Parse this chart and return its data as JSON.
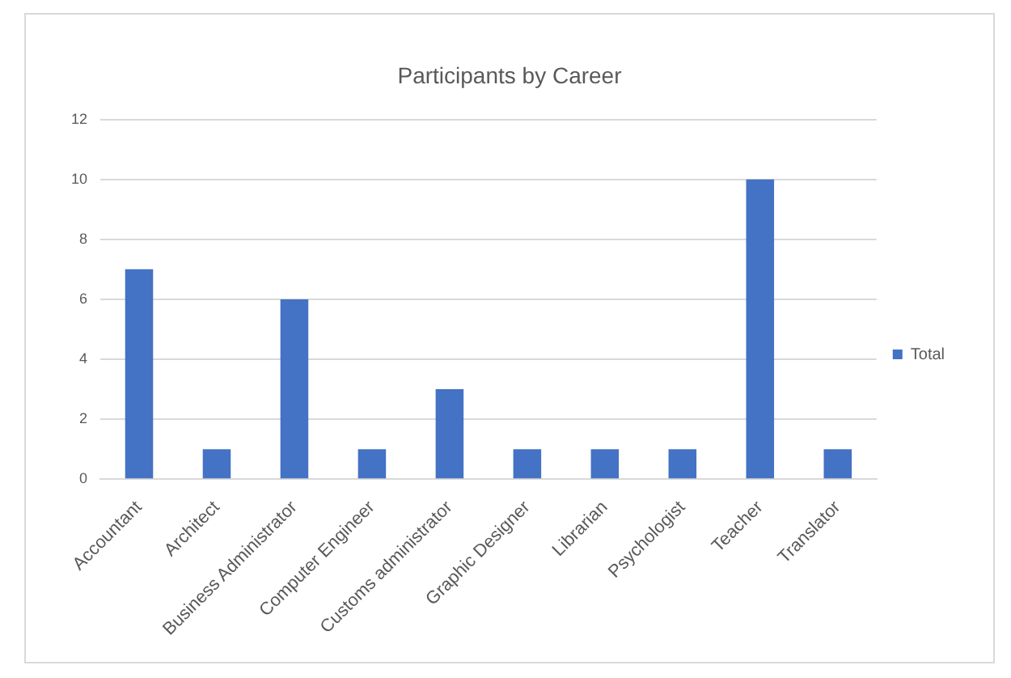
{
  "chart_data": {
    "type": "bar",
    "title": "Participants by Career",
    "categories": [
      "Accountant",
      "Architect",
      "Business Administrator",
      "Computer Engineer",
      "Customs administrator",
      "Graphic Designer",
      "Librarian",
      "Psychologist",
      "Teacher",
      "Translator"
    ],
    "series": [
      {
        "name": "Total",
        "color": "#4472c4",
        "values": [
          7,
          1,
          6,
          1,
          3,
          1,
          1,
          1,
          10,
          1
        ]
      }
    ],
    "ylim": [
      0,
      12
    ],
    "yticks": [
      0,
      2,
      4,
      6,
      8,
      10,
      12
    ],
    "grid": "y",
    "legend": "right"
  }
}
